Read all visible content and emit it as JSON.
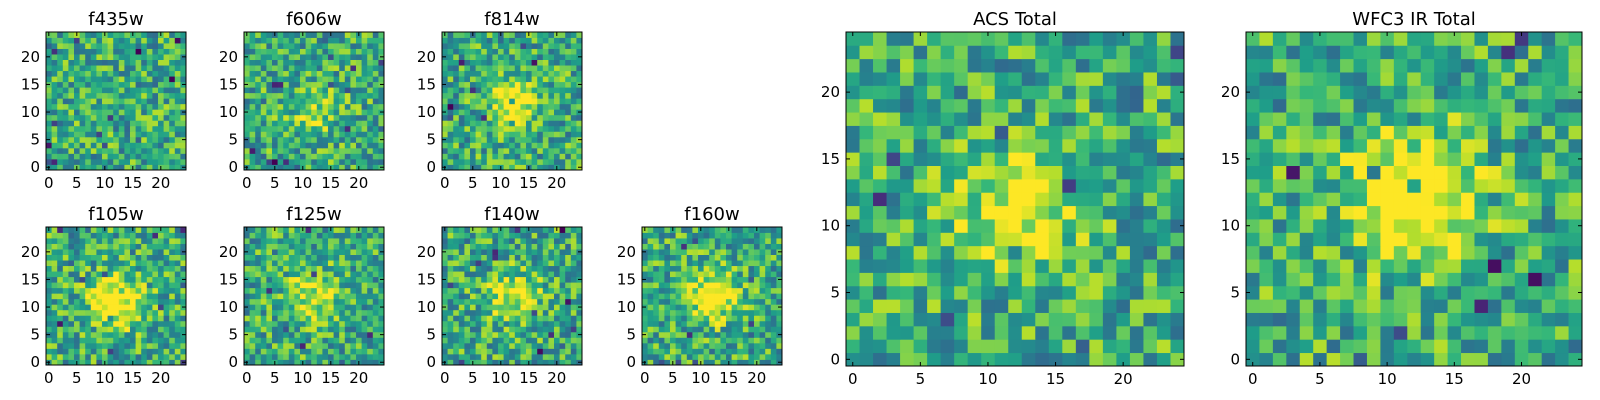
{
  "figure": {
    "panels": [
      {
        "id": "f435w",
        "title": "f435w",
        "seed": 11,
        "peak": 0.0,
        "cx": 12,
        "cy": 12,
        "sigma": 3.0
      },
      {
        "id": "f606w",
        "title": "f606w",
        "seed": 23,
        "peak": 0.25,
        "cx": 12,
        "cy": 10,
        "sigma": 3.0
      },
      {
        "id": "f814w",
        "title": "f814w",
        "seed": 37,
        "peak": 0.55,
        "cx": 12,
        "cy": 12,
        "sigma": 2.6
      },
      {
        "id": "f105w",
        "title": "f105w",
        "seed": 41,
        "peak": 0.55,
        "cx": 12,
        "cy": 11,
        "sigma": 3.2
      },
      {
        "id": "f125w",
        "title": "f125w",
        "seed": 53,
        "peak": 0.35,
        "cx": 12,
        "cy": 12,
        "sigma": 3.2
      },
      {
        "id": "f140w",
        "title": "f140w",
        "seed": 67,
        "peak": 0.35,
        "cx": 12,
        "cy": 12,
        "sigma": 3.2
      },
      {
        "id": "f160w",
        "title": "f160w",
        "seed": 79,
        "peak": 0.5,
        "cx": 12,
        "cy": 12,
        "sigma": 3.0
      },
      {
        "id": "acs_total",
        "title": "ACS Total",
        "seed": 97,
        "peak": 0.45,
        "cx": 12,
        "cy": 11,
        "sigma": 3.0
      },
      {
        "id": "wfc3_ir_total",
        "title": "WFC3 IR Total",
        "seed": 113,
        "peak": 0.6,
        "cx": 12,
        "cy": 12,
        "sigma": 3.2
      }
    ]
  },
  "chart_data": {
    "type": "heatmap",
    "grid": [
      25,
      25
    ],
    "colormap": "viridis",
    "small_panel_xticks": [
      "0",
      "5",
      "10",
      "15",
      "20"
    ],
    "small_panel_yticks": [
      "0",
      "5",
      "10",
      "15",
      "20"
    ],
    "large_panel_xticks": [
      "0",
      "5",
      "10",
      "15",
      "20"
    ],
    "large_panel_yticks": [
      "0",
      "5",
      "10",
      "15",
      "20"
    ],
    "xlim": [
      -0.5,
      24.5
    ],
    "ylim": [
      -0.5,
      24.5
    ]
  }
}
